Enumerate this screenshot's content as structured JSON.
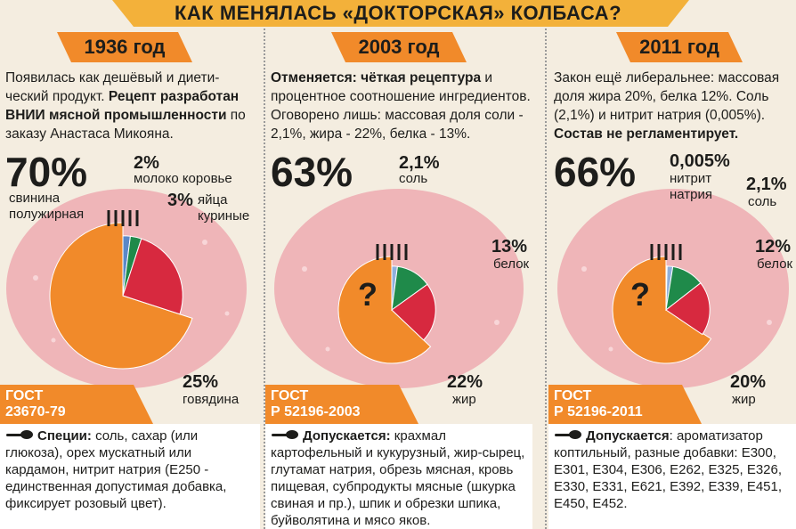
{
  "title": "КАК МЕНЯЛАСЬ «ДОКТОРСКАЯ» КОЛБАСА?",
  "colors": {
    "pork": "#f18a2a",
    "beef": "#d7293f",
    "protein": "#1f8a4a",
    "milk": "#5a88c8",
    "salt": "#8fb0dc",
    "nitrite": "#c9d9ee",
    "sausage": "#efb5b8",
    "accent": "#f18a2a"
  },
  "periods": [
    {
      "year": "1936 год",
      "desc_plain_1": "Появилась как дешёвый и диети-ческий продукт. ",
      "desc_bold": "Рецепт разработан ВНИИ мясной промышленности",
      "desc_plain_2": " по заказу Анастаса Микояна.",
      "main_pct": "70%",
      "main_label": "свинина полужирная",
      "labels": [
        {
          "pct": "2%",
          "text": "молоко коровье"
        },
        {
          "pct": "3%",
          "text": "яйца куриные"
        },
        {
          "pct": "25%",
          "text": "говядина"
        }
      ],
      "gost_1": "ГОСТ",
      "gost_2": "23670-79",
      "add_bold": "Специи:",
      "add_text": " соль, сахар (или глюкоза), орех мускатный или кардамон, нитрит натрия (Е250 - единственная допустимая добавка, фиксирует розовый цвет)."
    },
    {
      "year": "2003 год",
      "desc_bold": "Отменяется: чёткая рецептура",
      "desc_plain_1": " и процентное соотношение ингредиентов. Оговорено лишь: массовая доля соли - 2,1%, жира - 22%, белка - 13%.",
      "main_pct": "63%",
      "question": "?",
      "labels": [
        {
          "pct": "2,1%",
          "text": "соль"
        },
        {
          "pct": "13%",
          "text": "белок"
        },
        {
          "pct": "22%",
          "text": "жир"
        }
      ],
      "gost_1": "ГОСТ",
      "gost_2": "Р 52196-2003",
      "add_bold": "Допускается:",
      "add_text": " крахмал картофельный и кукурузный, жир-сырец, глутамат натрия, обрезь мясная, кровь пищевая, субпродукты мясные (шкурка свиная и пр.), шпик и обрезки шпика, буйволятина и мясо яков."
    },
    {
      "year": "2011 год",
      "desc_plain_1": "Закон ещё либеральнее: массовая доля жира 20%, белка  12%. Соль (2,1%) и нитрит натрия (0,005%). ",
      "desc_bold": "Состав не регламентирует.",
      "main_pct": "66%",
      "question": "?",
      "labels": [
        {
          "pct": "0,005%",
          "text": "нитрит натрия"
        },
        {
          "pct": "2,1%",
          "text": "соль"
        },
        {
          "pct": "12%",
          "text": "белок"
        },
        {
          "pct": "20%",
          "text": "жир"
        }
      ],
      "gost_1": "ГОСТ",
      "gost_2": "Р 52196-2011",
      "add_bold": "Допускается",
      "add_text": ": ароматизатор коптильный, разные добавки: Е300, Е301, Е304, Е306, Е262, Е325, Е326, Е330, Е331, Е621, Е392, Е339, Е451, Е450, Е452."
    }
  ],
  "chart_data": [
    {
      "type": "pie",
      "title": "1936 год",
      "slices": [
        {
          "name": "свинина полужирная",
          "value": 70
        },
        {
          "name": "молоко коровье",
          "value": 2
        },
        {
          "name": "яйца куриные",
          "value": 3
        },
        {
          "name": "говядина",
          "value": 25
        }
      ]
    },
    {
      "type": "pie",
      "title": "2003 год",
      "slices": [
        {
          "name": "?",
          "value": 63
        },
        {
          "name": "соль",
          "value": 2.1
        },
        {
          "name": "белок",
          "value": 13
        },
        {
          "name": "жир",
          "value": 22
        }
      ]
    },
    {
      "type": "pie",
      "title": "2011 год",
      "slices": [
        {
          "name": "?",
          "value": 66
        },
        {
          "name": "нитрит натрия",
          "value": 0.005
        },
        {
          "name": "соль",
          "value": 2.1
        },
        {
          "name": "белок",
          "value": 12
        },
        {
          "name": "жир",
          "value": 20
        }
      ]
    }
  ]
}
